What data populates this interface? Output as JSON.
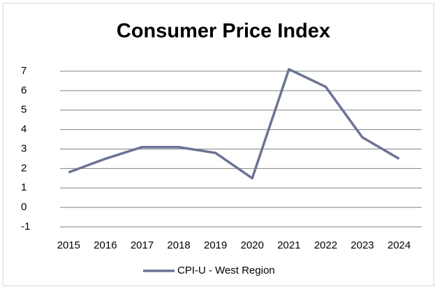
{
  "chart_data": {
    "type": "line",
    "title": "Consumer Price Index",
    "categories": [
      "2015",
      "2016",
      "2017",
      "2018",
      "2019",
      "2020",
      "2021",
      "2022",
      "2023",
      "2024"
    ],
    "series": [
      {
        "name": "CPI-U - West Region",
        "color": "#6b7396",
        "values": [
          1.8,
          2.5,
          3.1,
          3.1,
          2.8,
          1.5,
          7.1,
          6.2,
          3.6,
          2.5
        ]
      }
    ],
    "ylim": [
      -1,
      7
    ],
    "yticks": [
      -1,
      0,
      1,
      2,
      3,
      4,
      5,
      6,
      7
    ],
    "grid": true,
    "legend": "bottom"
  }
}
